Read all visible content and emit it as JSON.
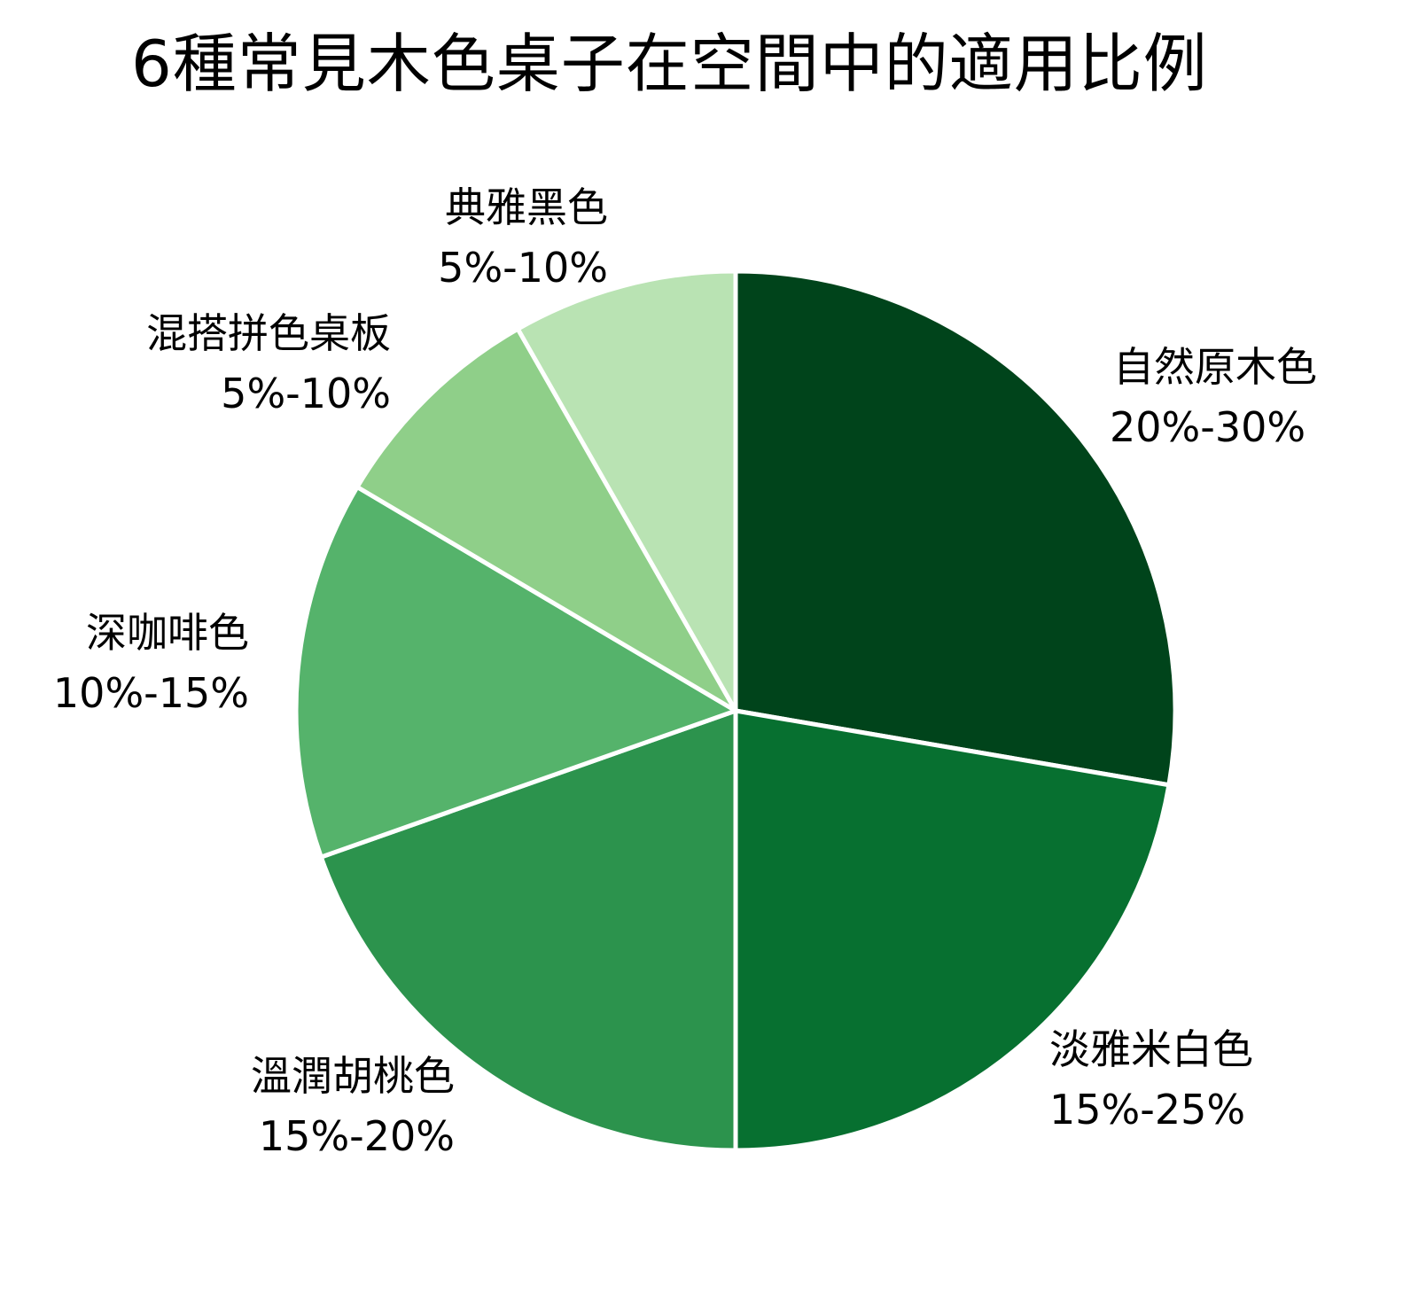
{
  "chart_data": {
    "type": "pie",
    "title": "6種常見木色桌子在空間中的適用比例",
    "start_angle_deg": 0,
    "direction": "clockwise",
    "legend": "none (labels placed next to slices)",
    "categories": [
      "自然原木色",
      "淡雅米白色",
      "溫潤胡桃色",
      "深咖啡色",
      "混搭拼色桌板",
      "典雅黑色"
    ],
    "values": [
      27.7,
      22.3,
      19.6,
      13.9,
      8.25,
      8.25
    ],
    "range_labels": [
      "20%-30%",
      "15%-25%",
      "15%-20%",
      "10%-15%",
      "5%-10%",
      "5%-10%"
    ],
    "colors": [
      "#00441b",
      "#077030",
      "#2c934d",
      "#55b36b",
      "#8fcf89",
      "#b9e3b3"
    ]
  },
  "title": "6種常見木色桌子在空間中的適用比例",
  "slices": [
    {
      "name": "自然原木色",
      "range": "20%-30%"
    },
    {
      "name": "淡雅米白色",
      "range": "15%-25%"
    },
    {
      "name": "溫潤胡桃色",
      "range": "15%-20%"
    },
    {
      "name": "深咖啡色",
      "range": "10%-15%"
    },
    {
      "name": "混搭拼色桌板",
      "range": "5%-10%"
    },
    {
      "name": "典雅黑色",
      "range": "5%-10%"
    }
  ]
}
